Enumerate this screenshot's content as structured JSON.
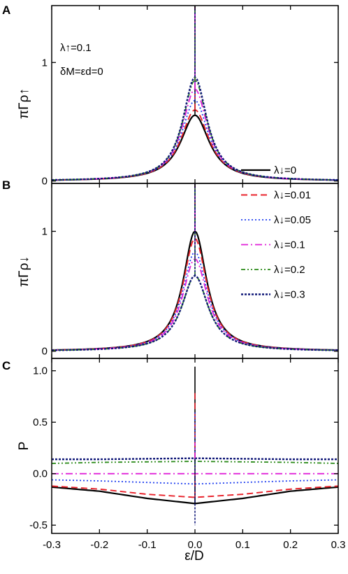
{
  "figure": {
    "x_axis_label": "ε/D",
    "x_ticks": [
      "-0.3",
      "-0.2",
      "-0.1",
      "0.0",
      "0.1",
      "0.2",
      "0.3"
    ],
    "x_tick_values": [
      -0.3,
      -0.2,
      -0.1,
      0.0,
      0.1,
      0.2,
      0.3
    ]
  },
  "styles": [
    {
      "color": "#000000",
      "dash": "",
      "width": 2.2
    },
    {
      "color": "#e8212a",
      "dash": "9,5",
      "width": 1.9
    },
    {
      "color": "#1f3ff0",
      "dash": "2,3",
      "width": 1.8
    },
    {
      "color": "#e020d8",
      "dash": "10,4,2,4",
      "width": 1.8
    },
    {
      "color": "#2a8a18",
      "dash": "6,3,2,3,2,3",
      "width": 1.8
    },
    {
      "color": "#101878",
      "dash": "3,2",
      "width": 2.4
    }
  ],
  "legend": {
    "panel": "B",
    "placement": "top-right",
    "entries": [
      "λ↓=0",
      "λ↓=0.01",
      "λ↓=0.05",
      "λ↓=0.1",
      "λ↓=0.2",
      "λ↓=0.3"
    ]
  },
  "chart_data": [
    {
      "type": "line",
      "panel": "A",
      "ylabel": "πΓρ↑",
      "ylim": [
        -0.02,
        1.48
      ],
      "y_ticks": [
        "0",
        "1"
      ],
      "y_tick_values": [
        0,
        1
      ],
      "annotations": [
        "λ↑=0.1",
        "δM=εd=0"
      ],
      "spike_at_x": 0.0,
      "series": [
        {
          "name": "λ↓=0",
          "peak": 0.555,
          "edge": 0.072
        },
        {
          "name": "λ↓=0.01",
          "peak": 0.6,
          "edge": 0.074
        },
        {
          "name": "λ↓=0.05",
          "peak": 0.68,
          "edge": 0.077
        },
        {
          "name": "λ↓=0.1",
          "peak": 0.775,
          "edge": 0.08
        },
        {
          "name": "λ↓=0.2",
          "peak": 0.85,
          "edge": 0.082
        },
        {
          "name": "λ↓=0.3",
          "peak": 0.875,
          "edge": 0.083
        }
      ]
    },
    {
      "type": "line",
      "panel": "B",
      "ylabel": "πΓρ↓",
      "ylim": [
        -0.06,
        1.4
      ],
      "y_ticks": [
        "0",
        "1"
      ],
      "y_tick_values": [
        0,
        1
      ],
      "spike_at_x": 0.0,
      "series": [
        {
          "name": "λ↓=0",
          "peak": 1.0,
          "edge": 0.09
        },
        {
          "name": "λ↓=0.01",
          "peak": 0.94,
          "edge": 0.088
        },
        {
          "name": "λ↓=0.05",
          "peak": 0.83,
          "edge": 0.083
        },
        {
          "name": "λ↓=0.1",
          "peak": 0.77,
          "edge": 0.078
        },
        {
          "name": "λ↓=0.2",
          "peak": 0.63,
          "edge": 0.07
        },
        {
          "name": "λ↓=0.3",
          "peak": 0.63,
          "edge": 0.07
        }
      ]
    },
    {
      "type": "line",
      "panel": "C",
      "ylabel": "P",
      "ylim": [
        -0.58,
        1.12
      ],
      "y_ticks": [
        "-0.5",
        "0.0",
        "0.5",
        "1.0"
      ],
      "y_tick_values": [
        -0.5,
        0.0,
        0.5,
        1.0
      ],
      "x": [
        -0.3,
        -0.2,
        -0.1,
        0.0,
        0.1,
        0.2,
        0.3
      ],
      "series": [
        {
          "name": "λ↓=0",
          "values": [
            -0.13,
            -0.17,
            -0.24,
            -0.29,
            -0.24,
            -0.17,
            -0.13
          ],
          "spike_top": 1.04
        },
        {
          "name": "λ↓=0.01",
          "values": [
            -0.12,
            -0.15,
            -0.2,
            -0.23,
            -0.2,
            -0.15,
            -0.12
          ],
          "spike_top": 0.8
        },
        {
          "name": "λ↓=0.05",
          "values": [
            -0.06,
            -0.07,
            -0.085,
            -0.1,
            -0.085,
            -0.07,
            -0.06
          ],
          "spike_top": 0.6
        },
        {
          "name": "λ↓=0.1",
          "values": [
            0.0,
            0.0,
            0.0,
            0.0,
            0.0,
            0.0,
            0.0
          ],
          "spike_top": 0.3
        },
        {
          "name": "λ↓=0.2",
          "values": [
            0.1,
            0.11,
            0.115,
            0.12,
            0.115,
            0.11,
            0.1
          ],
          "spike_top": 0.0
        },
        {
          "name": "λ↓=0.3",
          "values": [
            0.14,
            0.14,
            0.145,
            0.15,
            0.145,
            0.14,
            0.14
          ],
          "spike_bottom": -0.5
        }
      ]
    }
  ]
}
